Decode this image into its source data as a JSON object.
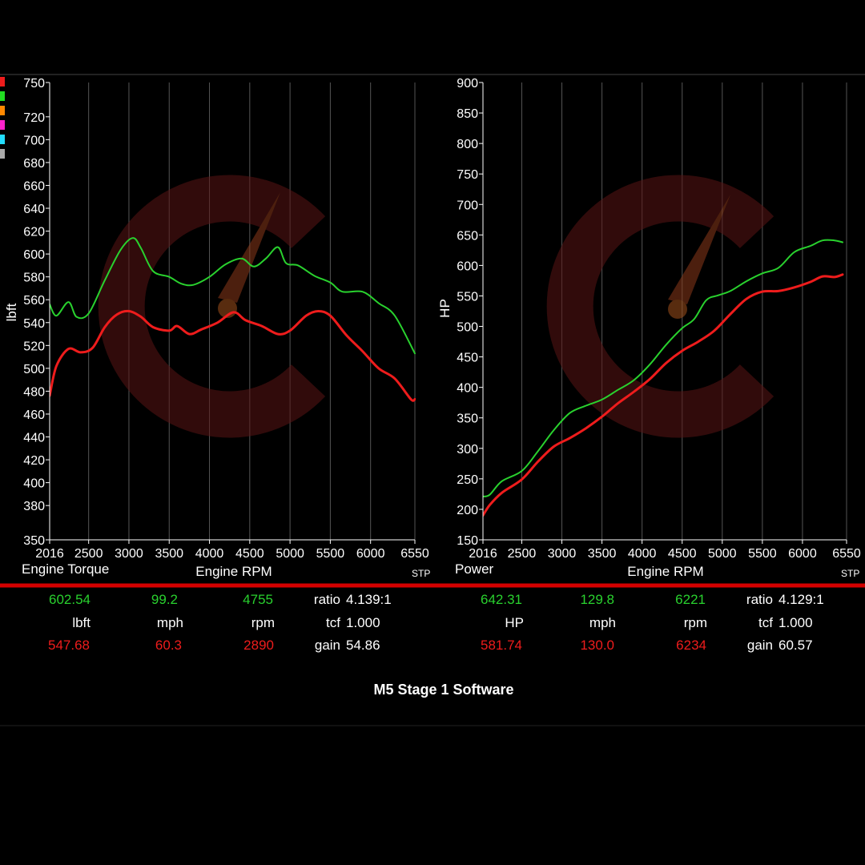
{
  "colors": {
    "background": "#000000",
    "grid": "#555555",
    "axis": "#ffffff",
    "baseline_run": "#ee1c1c",
    "tuned_run": "#29d12e",
    "divider": "#d40000",
    "legend_swatches": [
      "#ee1c1c",
      "#22dd22",
      "#ff8800",
      "#ff22cc",
      "#22ddff",
      "#aaaaaa"
    ]
  },
  "watermark": {
    "icon": "gauge-c-logo-icon"
  },
  "chart_data": [
    {
      "type": "line",
      "title": "Engine Torque",
      "xlabel": "Engine RPM",
      "ylabel": "lbft",
      "correction": "STP",
      "xlim": [
        2016,
        6550
      ],
      "ylim": [
        350,
        750
      ],
      "x_ticks": [
        2016,
        2500,
        3000,
        3500,
        4000,
        4500,
        5000,
        5500,
        6000,
        6550
      ],
      "y_ticks": [
        350,
        380,
        400,
        420,
        440,
        460,
        480,
        500,
        520,
        540,
        560,
        580,
        600,
        620,
        640,
        660,
        680,
        700,
        720,
        750
      ],
      "grid": true,
      "series": [
        {
          "color": "#29d12e",
          "x": [
            2016,
            2100,
            2250,
            2350,
            2500,
            2700,
            2900,
            3050,
            3150,
            3300,
            3500,
            3650,
            3800,
            4000,
            4200,
            4400,
            4550,
            4700,
            4850,
            4950,
            5100,
            5300,
            5500,
            5650,
            5900,
            6100,
            6300,
            6550
          ],
          "y": [
            556,
            546,
            558,
            545,
            548,
            577,
            604,
            614,
            605,
            585,
            580,
            574,
            573,
            580,
            591,
            596,
            589,
            596,
            606,
            592,
            590,
            581,
            575,
            567,
            567,
            557,
            546,
            513
          ]
        },
        {
          "color": "#ee1c1c",
          "x": [
            2016,
            2100,
            2250,
            2400,
            2550,
            2700,
            2850,
            3000,
            3150,
            3300,
            3500,
            3600,
            3750,
            3900,
            4100,
            4300,
            4450,
            4650,
            4850,
            5000,
            5200,
            5350,
            5500,
            5700,
            5900,
            6100,
            6300,
            6500,
            6550
          ],
          "y": [
            476,
            502,
            517,
            514,
            518,
            536,
            547,
            550,
            545,
            536,
            533,
            537,
            530,
            534,
            540,
            549,
            542,
            537,
            530,
            533,
            546,
            550,
            546,
            529,
            515,
            500,
            491,
            473,
            473
          ]
        }
      ]
    },
    {
      "type": "line",
      "title": "Power",
      "xlabel": "Engine RPM",
      "ylabel": "HP",
      "correction": "STP",
      "xlim": [
        2016,
        6550
      ],
      "ylim": [
        150,
        900
      ],
      "x_ticks": [
        2016,
        2500,
        3000,
        3500,
        4000,
        4500,
        5000,
        5500,
        6000,
        6550
      ],
      "y_ticks": [
        150,
        200,
        250,
        300,
        350,
        400,
        450,
        500,
        550,
        600,
        650,
        700,
        750,
        800,
        850,
        900
      ],
      "grid": true,
      "series": [
        {
          "color": "#29d12e",
          "x": [
            2016,
            2100,
            2250,
            2500,
            2700,
            2900,
            3100,
            3300,
            3500,
            3700,
            3900,
            4100,
            4300,
            4500,
            4650,
            4800,
            4950,
            5100,
            5300,
            5500,
            5700,
            5900,
            6100,
            6250,
            6400,
            6500
          ],
          "y": [
            221,
            224,
            246,
            263,
            295,
            330,
            358,
            370,
            380,
            396,
            412,
            438,
            470,
            497,
            512,
            543,
            551,
            558,
            574,
            587,
            596,
            622,
            632,
            641,
            641,
            638
          ]
        },
        {
          "color": "#ee1c1c",
          "x": [
            2016,
            2100,
            2250,
            2500,
            2700,
            2900,
            3100,
            3300,
            3500,
            3700,
            3900,
            4100,
            4300,
            4500,
            4700,
            4900,
            5100,
            5300,
            5500,
            5700,
            5900,
            6100,
            6250,
            6400,
            6500
          ],
          "y": [
            190,
            207,
            227,
            249,
            278,
            303,
            317,
            333,
            352,
            374,
            393,
            414,
            440,
            460,
            475,
            493,
            520,
            545,
            557,
            558,
            564,
            573,
            582,
            581,
            585
          ]
        }
      ]
    }
  ],
  "readouts": {
    "torque": {
      "tuned": {
        "value": "602.54",
        "speed": "99.2",
        "rpm": "4755"
      },
      "units": {
        "value": "lbft",
        "speed": "mph",
        "rpm": "rpm"
      },
      "baseline": {
        "value": "547.68",
        "speed": "60.3",
        "rpm": "2890"
      },
      "ratio_label": "ratio",
      "ratio": "4.139:1",
      "tcf_label": "tcf",
      "tcf": "1.000",
      "gain_label": "gain",
      "gain": "54.86"
    },
    "power": {
      "tuned": {
        "value": "642.31",
        "speed": "129.8",
        "rpm": "6221"
      },
      "units": {
        "value": "HP",
        "speed": "mph",
        "rpm": "rpm"
      },
      "baseline": {
        "value": "581.74",
        "speed": "130.0",
        "rpm": "6234"
      },
      "ratio_label": "ratio",
      "ratio": "4.129:1",
      "tcf_label": "tcf",
      "tcf": "1.000",
      "gain_label": "gain",
      "gain": "60.57"
    }
  },
  "caption": "M5 Stage 1 Software"
}
